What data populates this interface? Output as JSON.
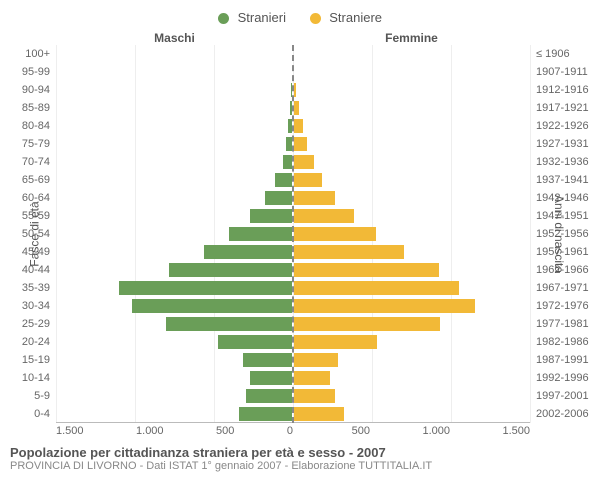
{
  "chart": {
    "type": "population-pyramid",
    "legend": {
      "male": {
        "label": "Stranieri",
        "color": "#6a9e58"
      },
      "female": {
        "label": "Straniere",
        "color": "#f2b937"
      }
    },
    "column_headers": {
      "left": "Maschi",
      "right": "Femmine"
    },
    "y_axis_left": {
      "label": "Fasce di età"
    },
    "y_axis_right": {
      "label": "Anni di nascita"
    },
    "x_axis": {
      "max": 1500,
      "ticks_left": [
        "1.500",
        "1.000",
        "500",
        "0"
      ],
      "ticks_right": [
        "0",
        "500",
        "1.000",
        "1.500"
      ]
    },
    "grid_color": "#eeeeee",
    "background_color": "#ffffff",
    "label_fontsize": 11,
    "rows": [
      {
        "age": "100+",
        "birth": "≤ 1906",
        "male": 0,
        "female": 0
      },
      {
        "age": "95-99",
        "birth": "1907-1911",
        "male": 0,
        "female": 0
      },
      {
        "age": "90-94",
        "birth": "1912-1916",
        "male": 5,
        "female": 10
      },
      {
        "age": "85-89",
        "birth": "1917-1921",
        "male": 15,
        "female": 30
      },
      {
        "age": "80-84",
        "birth": "1922-1926",
        "male": 25,
        "female": 60
      },
      {
        "age": "75-79",
        "birth": "1927-1931",
        "male": 40,
        "female": 80
      },
      {
        "age": "70-74",
        "birth": "1932-1936",
        "male": 60,
        "female": 130
      },
      {
        "age": "65-69",
        "birth": "1937-1941",
        "male": 110,
        "female": 180
      },
      {
        "age": "60-64",
        "birth": "1942-1946",
        "male": 170,
        "female": 260
      },
      {
        "age": "55-59",
        "birth": "1947-1951",
        "male": 270,
        "female": 380
      },
      {
        "age": "50-54",
        "birth": "1952-1956",
        "male": 400,
        "female": 520
      },
      {
        "age": "45-49",
        "birth": "1957-1961",
        "male": 560,
        "female": 700
      },
      {
        "age": "40-44",
        "birth": "1962-1966",
        "male": 780,
        "female": 920
      },
      {
        "age": "35-39",
        "birth": "1967-1971",
        "male": 1100,
        "female": 1050
      },
      {
        "age": "30-34",
        "birth": "1972-1976",
        "male": 1020,
        "female": 1150
      },
      {
        "age": "25-29",
        "birth": "1977-1981",
        "male": 800,
        "female": 930
      },
      {
        "age": "20-24",
        "birth": "1982-1986",
        "male": 470,
        "female": 530
      },
      {
        "age": "15-19",
        "birth": "1987-1991",
        "male": 310,
        "female": 280
      },
      {
        "age": "10-14",
        "birth": "1992-1996",
        "male": 270,
        "female": 230
      },
      {
        "age": "5-9",
        "birth": "1997-2001",
        "male": 290,
        "female": 260
      },
      {
        "age": "0-4",
        "birth": "2002-2006",
        "male": 340,
        "female": 320
      }
    ]
  },
  "caption": {
    "title": "Popolazione per cittadinanza straniera per età e sesso - 2007",
    "subtitle": "PROVINCIA DI LIVORNO - Dati ISTAT 1° gennaio 2007 - Elaborazione TUTTITALIA.IT"
  }
}
